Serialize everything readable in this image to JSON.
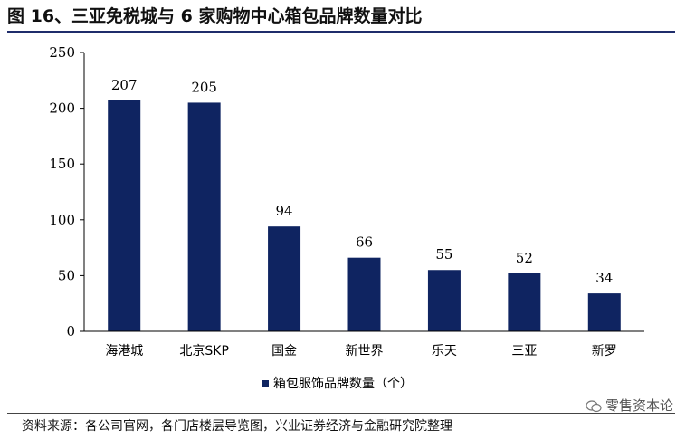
{
  "header": {
    "title": "图 16、三亚免税城与 6 家购物中心箱包品牌数量对比"
  },
  "chart_data": {
    "type": "bar",
    "title": "图 16、三亚免税城与 6 家购物中心箱包品牌数量对比",
    "categories": [
      "海港城",
      "北京SKP",
      "国金",
      "新世界",
      "乐天",
      "三亚",
      "新罗"
    ],
    "series": [
      {
        "name": "箱包服饰品牌数量（个）",
        "values": [
          207,
          205,
          94,
          66,
          55,
          52,
          34
        ],
        "color": "#0f2461"
      }
    ],
    "ylim": [
      0,
      250
    ],
    "yticks": [
      0,
      50,
      100,
      150,
      200,
      250
    ],
    "xlabel": "",
    "ylabel": "",
    "legend": "bottom-center",
    "grid": false,
    "data_labels": true
  },
  "footer": {
    "source": "资料来源：各公司官网，各门店楼层导览图，兴业证券经济与金融研究院整理",
    "watermark": "零售资本论",
    "watermark_icon": "wechat-icon"
  }
}
